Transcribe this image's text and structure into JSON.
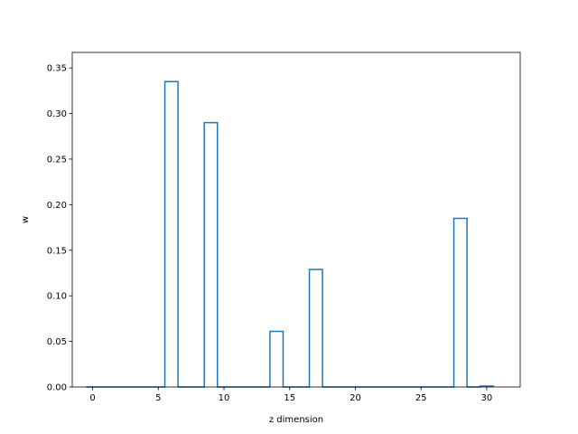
{
  "chart_data": {
    "type": "bar",
    "style": "step outline (unfilled)",
    "xlabel": "z dimension",
    "ylabel": "w",
    "xlim": [
      -1.55,
      32.55
    ],
    "ylim": [
      0,
      0.367
    ],
    "x_ticks": [
      0,
      5,
      10,
      15,
      20,
      25,
      30
    ],
    "y_ticks": [
      0.0,
      0.05,
      0.1,
      0.15,
      0.2,
      0.25,
      0.3,
      0.35
    ],
    "x": [
      0,
      1,
      2,
      3,
      4,
      5,
      6,
      7,
      8,
      9,
      10,
      11,
      12,
      13,
      14,
      15,
      16,
      17,
      18,
      19,
      20,
      21,
      22,
      23,
      24,
      25,
      26,
      27,
      28,
      29,
      30
    ],
    "values": [
      0,
      0,
      0,
      0,
      0,
      0,
      0.335,
      0,
      0,
      0.29,
      0,
      0,
      0,
      0,
      0.061,
      0,
      0,
      0.129,
      0,
      0,
      0,
      0,
      0,
      0,
      0,
      0,
      0,
      0,
      0.185,
      0,
      0.001
    ],
    "bin_width": 1,
    "grid": false,
    "line_color": "#1f77b4"
  }
}
